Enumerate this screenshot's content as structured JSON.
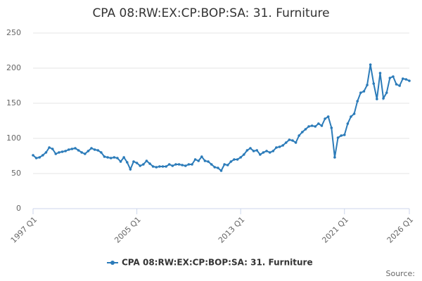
{
  "chart_data": {
    "type": "line",
    "title": "CPA 08:RW:EX:CP:BOP:SA: 31. Furniture",
    "source": "Source:",
    "categories": [
      "1997 Q1",
      null,
      null,
      null,
      null,
      null,
      null,
      null,
      null,
      null,
      null,
      null,
      null,
      null,
      null,
      null,
      null,
      null,
      null,
      null,
      null,
      null,
      null,
      null,
      null,
      null,
      null,
      null,
      null,
      null,
      null,
      null,
      "2005 Q1",
      null,
      null,
      null,
      null,
      null,
      null,
      null,
      null,
      null,
      null,
      null,
      null,
      null,
      null,
      null,
      null,
      null,
      null,
      null,
      null,
      null,
      null,
      null,
      null,
      null,
      null,
      null,
      null,
      null,
      null,
      null,
      "2013 Q1",
      null,
      null,
      null,
      null,
      null,
      null,
      null,
      null,
      null,
      null,
      null,
      null,
      null,
      null,
      null,
      null,
      null,
      null,
      null,
      null,
      null,
      null,
      null,
      null,
      null,
      null,
      null,
      null,
      null,
      null,
      null,
      "2021 Q1",
      null,
      null,
      null,
      null,
      null,
      null,
      null,
      null,
      null,
      null,
      null,
      null,
      null,
      null,
      null,
      null,
      null,
      null,
      null,
      "2026 Q1"
    ],
    "series": [
      {
        "name": "CPA 08:RW:EX:CP:BOP:SA: 31. Furniture",
        "color": "#2b7bb9",
        "values": [
          76,
          72,
          73,
          76,
          80,
          87,
          85,
          78,
          80,
          81,
          82,
          84,
          85,
          86,
          83,
          80,
          78,
          82,
          86,
          84,
          83,
          80,
          74,
          73,
          72,
          73,
          72,
          67,
          73,
          66,
          56,
          67,
          65,
          61,
          63,
          68,
          64,
          60,
          59,
          60,
          60,
          60,
          63,
          61,
          63,
          63,
          62,
          61,
          63,
          63,
          70,
          68,
          74,
          68,
          67,
          63,
          59,
          58,
          54,
          63,
          62,
          67,
          70,
          70,
          73,
          77,
          83,
          86,
          82,
          83,
          77,
          80,
          82,
          80,
          82,
          87,
          88,
          90,
          94,
          98,
          97,
          94,
          104,
          109,
          113,
          117,
          118,
          117,
          121,
          118,
          128,
          131,
          115,
          73,
          101,
          104,
          105,
          121,
          131,
          135,
          153,
          165,
          167,
          176,
          205,
          178,
          156,
          193,
          157,
          165,
          186,
          188,
          177,
          175,
          185,
          184,
          182
        ]
      }
    ],
    "ylim": [
      0,
      250
    ],
    "yticks": [
      0,
      50,
      100,
      150,
      200,
      250
    ],
    "grid": true,
    "legend": "bottom"
  }
}
